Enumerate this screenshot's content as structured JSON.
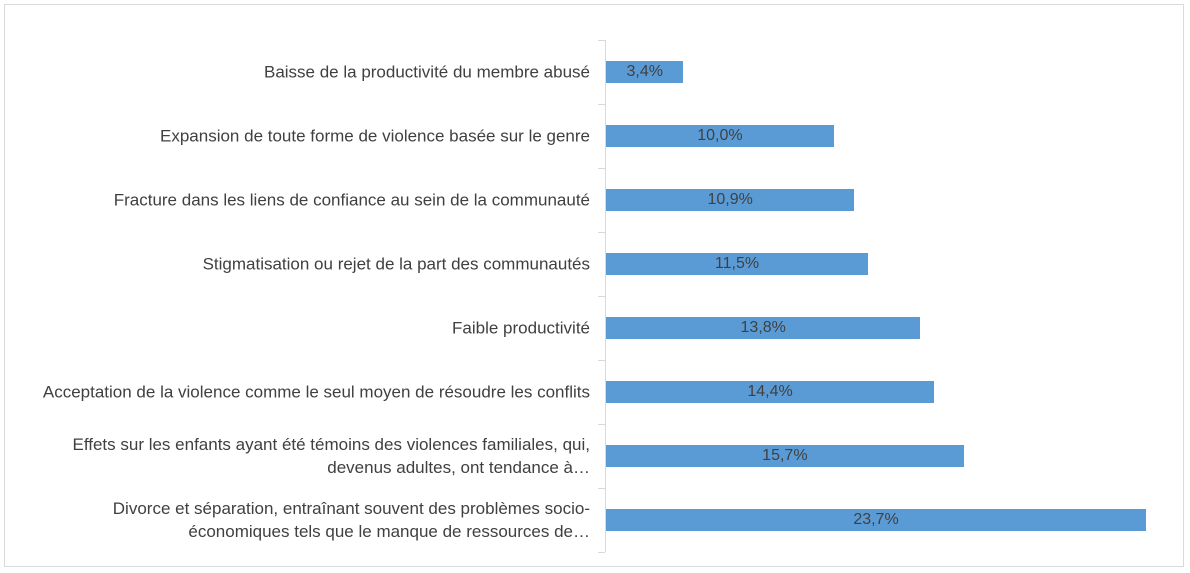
{
  "chart_data": {
    "type": "bar",
    "orientation": "horizontal",
    "categories": [
      "Baisse de la productivité du membre abusé",
      "Expansion de toute forme de violence basée sur le genre",
      "Fracture dans les liens de confiance au sein de la communauté",
      "Stigmatisation ou rejet de la part des communautés",
      "Faible productivité",
      "Acceptation de la violence comme le seul moyen de résoudre les conflits",
      "Effets sur les enfants ayant été témoins des violences familiales, qui, devenus adultes, ont tendance à…",
      "Divorce et séparation, entraînant souvent des problèmes socio-économiques tels que le manque de ressources de…"
    ],
    "values": [
      3.4,
      10.0,
      10.9,
      11.5,
      13.8,
      14.4,
      15.7,
      23.7
    ],
    "value_labels": [
      "3,4%",
      "10,0%",
      "10,9%",
      "11,5%",
      "13,8%",
      "14,4%",
      "15,7%",
      "23,7%"
    ],
    "color": "#5b9bd5"
  }
}
